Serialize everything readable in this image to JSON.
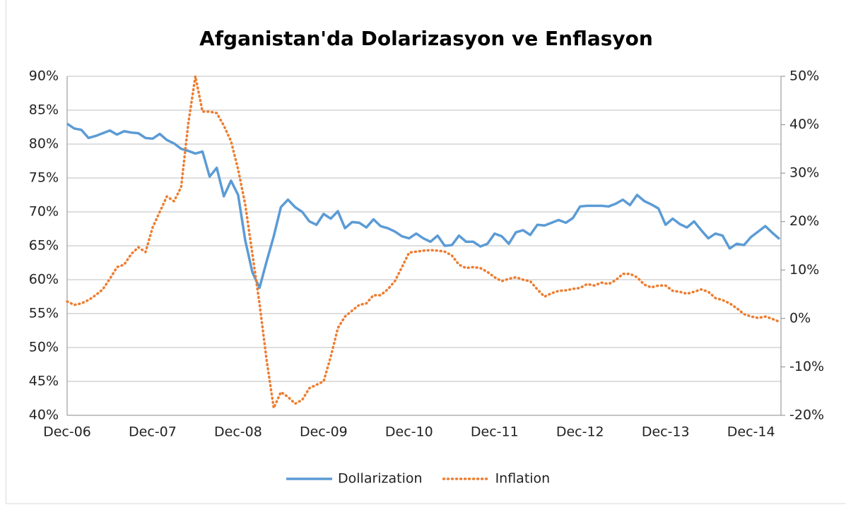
{
  "chart_data": {
    "type": "line",
    "title": "Afganistan'da Dolarizasyon ve Enflasyon",
    "categories": [
      "Dec-06",
      null,
      null,
      null,
      null,
      null,
      null,
      null,
      null,
      null,
      null,
      null,
      "Dec-07",
      null,
      null,
      null,
      null,
      null,
      null,
      null,
      null,
      null,
      null,
      null,
      "Dec-08",
      null,
      null,
      null,
      null,
      null,
      null,
      null,
      null,
      null,
      null,
      null,
      "Dec-09",
      null,
      null,
      null,
      null,
      null,
      null,
      null,
      null,
      null,
      null,
      null,
      "Dec-10",
      null,
      null,
      null,
      null,
      null,
      null,
      null,
      null,
      null,
      null,
      null,
      "Dec-11",
      null,
      null,
      null,
      null,
      null,
      null,
      null,
      null,
      null,
      null,
      null,
      "Dec-12",
      null,
      null,
      null,
      null,
      null,
      null,
      null,
      null,
      null,
      null,
      null,
      "Dec-13",
      null,
      null,
      null,
      null,
      null,
      null,
      null,
      null,
      null,
      null,
      null,
      "Dec-14",
      null,
      null,
      null,
      null
    ],
    "series": [
      {
        "name": "Dollarization",
        "color": "#5b9bd5",
        "values": [
          83.0,
          82.3,
          82.1,
          80.9,
          81.2,
          81.6,
          82.0,
          81.4,
          81.9,
          81.7,
          81.6,
          80.9,
          80.8,
          81.5,
          80.6,
          80.1,
          79.3,
          79.0,
          78.6,
          78.9,
          75.2,
          76.5,
          72.3,
          74.6,
          72.5,
          65.8,
          61.1,
          58.8,
          62.7,
          66.4,
          70.7,
          71.8,
          70.7,
          70.0,
          68.6,
          68.1,
          69.7,
          69.0,
          70.1,
          67.6,
          68.5,
          68.4,
          67.7,
          68.9,
          67.9,
          67.6,
          67.1,
          66.4,
          66.1,
          66.8,
          66.1,
          65.6,
          66.5,
          65.0,
          65.1,
          66.5,
          65.6,
          65.6,
          64.9,
          65.3,
          66.8,
          66.4,
          65.3,
          67.0,
          67.3,
          66.6,
          68.1,
          68.0,
          68.4,
          68.8,
          68.4,
          69.1,
          70.8,
          70.9,
          70.9,
          70.9,
          70.8,
          71.2,
          71.8,
          71.0,
          72.5,
          71.6,
          71.1,
          70.5,
          68.1,
          69.0,
          68.2,
          67.7,
          68.6,
          67.3,
          66.1,
          66.8,
          66.5,
          64.6,
          65.3,
          65.1,
          66.3,
          67.1,
          67.9,
          66.9,
          66.0
        ]
      },
      {
        "name": "Inflation",
        "color": "#ed7d31",
        "axis": "y2",
        "dotted": true,
        "values": [
          3.5,
          2.8,
          3.1,
          3.8,
          4.8,
          6.0,
          8.2,
          10.6,
          11.1,
          13.3,
          14.7,
          13.7,
          18.8,
          22.0,
          25.2,
          24.2,
          27.1,
          40.2,
          50.0,
          42.7,
          42.7,
          42.4,
          39.8,
          36.6,
          30.8,
          23.5,
          13.3,
          3.1,
          -8.6,
          -18.5,
          -15.2,
          -16.2,
          -17.6,
          -16.8,
          -14.4,
          -13.7,
          -13.0,
          -7.9,
          -2.0,
          0.4,
          1.6,
          2.8,
          3.1,
          4.8,
          4.8,
          6.0,
          7.7,
          10.6,
          13.6,
          13.8,
          14.0,
          14.1,
          14.0,
          13.8,
          13.0,
          11.1,
          10.4,
          10.6,
          10.4,
          9.6,
          8.5,
          7.7,
          8.2,
          8.5,
          8.0,
          7.7,
          6.0,
          4.5,
          5.2,
          5.7,
          5.8,
          6.1,
          6.3,
          7.1,
          6.8,
          7.4,
          7.1,
          7.9,
          9.2,
          9.2,
          8.5,
          7.0,
          6.4,
          6.8,
          6.8,
          5.7,
          5.5,
          5.1,
          5.5,
          6.0,
          5.5,
          4.2,
          3.8,
          3.1,
          2.1,
          0.9,
          0.4,
          0.1,
          0.4,
          -0.1,
          -0.7
        ]
      }
    ],
    "ylim": [
      40,
      90
    ],
    "yticks": [
      {
        "value": 40,
        "label": "40%"
      },
      {
        "value": 45,
        "label": "45%"
      },
      {
        "value": 50,
        "label": "50%"
      },
      {
        "value": 55,
        "label": "55%"
      },
      {
        "value": 60,
        "label": "60%"
      },
      {
        "value": 65,
        "label": "65%"
      },
      {
        "value": 70,
        "label": "70%"
      },
      {
        "value": 75,
        "label": "75%"
      },
      {
        "value": 80,
        "label": "80%"
      },
      {
        "value": 85,
        "label": "85%"
      },
      {
        "value": 90,
        "label": "90%"
      }
    ],
    "y2lim": [
      -20,
      50
    ],
    "y2ticks": [
      {
        "value": -20,
        "label": "-20%"
      },
      {
        "value": -10,
        "label": "-10%"
      },
      {
        "value": 0,
        "label": "0%"
      },
      {
        "value": 10,
        "label": "10%"
      },
      {
        "value": 20,
        "label": "20%"
      },
      {
        "value": 30,
        "label": "30%"
      },
      {
        "value": 40,
        "label": "40%"
      },
      {
        "value": 50,
        "label": "50%"
      }
    ],
    "grid": true,
    "legend": "bottom"
  }
}
